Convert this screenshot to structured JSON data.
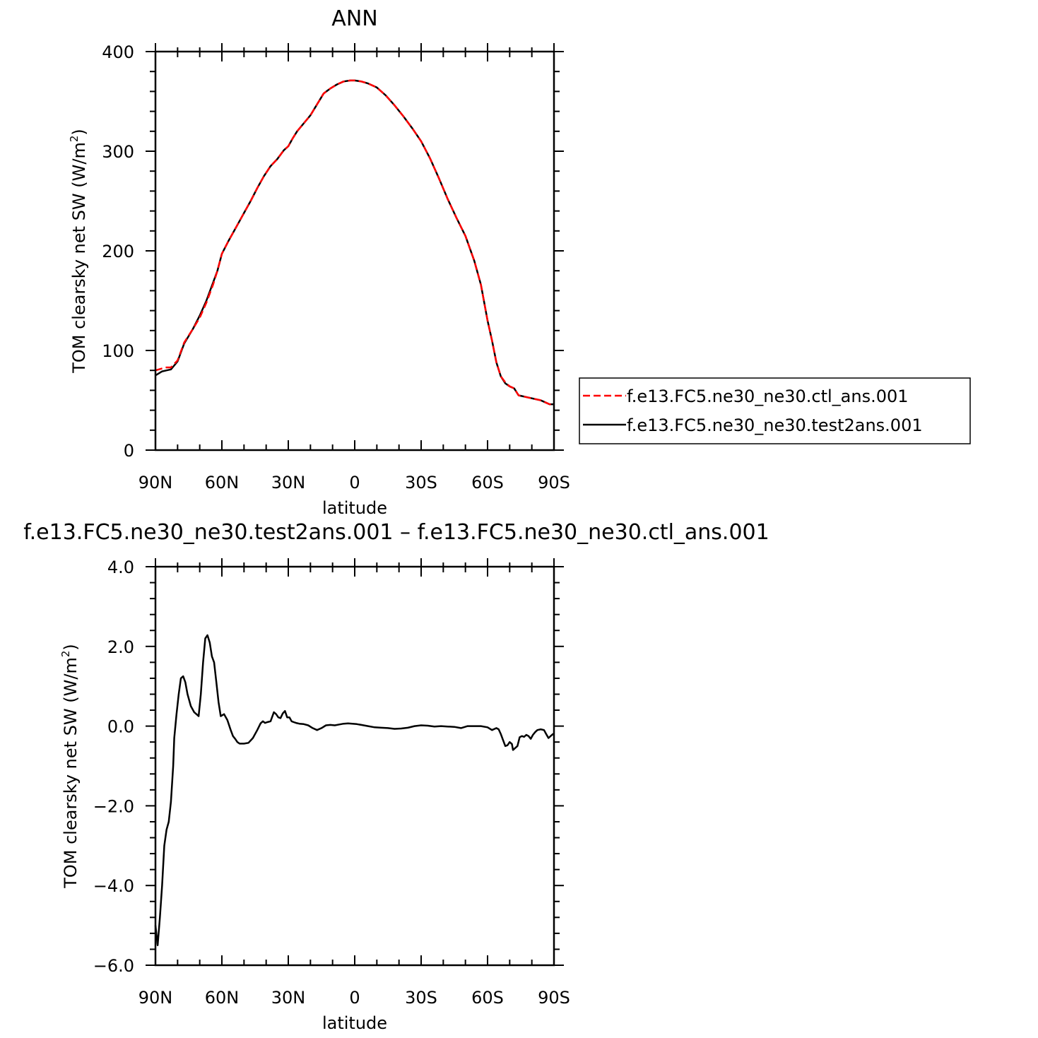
{
  "top": {
    "title": "ANN",
    "ylabel": "TOM clearsky net SW (W/m",
    "ylabel_sup": "2",
    "ylabel_close": ")",
    "xlabel": "latitude",
    "xticks": [
      "90N",
      "60N",
      "30N",
      "0",
      "30S",
      "60S",
      "90S"
    ],
    "yticks": [
      "0",
      "100",
      "200",
      "300",
      "400"
    ]
  },
  "bottom": {
    "title": "f.e13.FC5.ne30_ne30.test2ans.001  –  f.e13.FC5.ne30_ne30.ctl_ans.001",
    "ylabel": "TOM clearsky net SW (W/m",
    "ylabel_sup": "2",
    "ylabel_close": ")",
    "xlabel": "latitude",
    "xticks": [
      "90N",
      "60N",
      "30N",
      "0",
      "30S",
      "60S",
      "90S"
    ],
    "yticks": [
      "−6.0",
      "−4.0",
      "−2.0",
      "0.0",
      "2.0",
      "4.0"
    ]
  },
  "legend": {
    "items": [
      {
        "label": "f.e13.FC5.ne30_ne30.ctl_ans.001",
        "color": "#ff0000",
        "dash": true
      },
      {
        "label": "f.e13.FC5.ne30_ne30.test2ans.001",
        "color": "#000000",
        "dash": false
      }
    ]
  },
  "chart_data": [
    {
      "type": "line",
      "title": "ANN",
      "xlabel": "latitude",
      "ylabel": "TOM clearsky net SW (W/m2)",
      "xlim": [
        90,
        -90
      ],
      "ylim": [
        0,
        400
      ],
      "x_tick_values": [
        90,
        60,
        30,
        0,
        -30,
        -60,
        -90
      ],
      "y_tick_values": [
        0,
        100,
        200,
        300,
        400
      ],
      "legend": "right",
      "series": [
        {
          "name": "f.e13.FC5.ne30_ne30.ctl_ans.001",
          "color": "#ff0000",
          "style": "dashed",
          "x": [
            90,
            87,
            85,
            83,
            80,
            77,
            73,
            70,
            67,
            64,
            62,
            60,
            57,
            55,
            52,
            50,
            47,
            44,
            41,
            38,
            35,
            32,
            30,
            28,
            26,
            23,
            20,
            17,
            14,
            11,
            8,
            5,
            2,
            0,
            -3,
            -6,
            -10,
            -14,
            -18,
            -22,
            -26,
            -30,
            -34,
            -38,
            -42,
            -46,
            -50,
            -54,
            -57,
            -60,
            -62,
            -64,
            -66,
            -68,
            -70,
            -72,
            -74,
            -76,
            -78,
            -80,
            -82,
            -84,
            -86,
            -88,
            -90
          ],
          "y": [
            80,
            82,
            83,
            83,
            90,
            108,
            122,
            133,
            148,
            166,
            180,
            197,
            210,
            218,
            230,
            238,
            250,
            263,
            275,
            285,
            292,
            301,
            305,
            313,
            320,
            328,
            336,
            347,
            358,
            363,
            367,
            370,
            371,
            371,
            370,
            368,
            364,
            356,
            346,
            335,
            323,
            310,
            293,
            273,
            252,
            233,
            215,
            190,
            166,
            130,
            110,
            88,
            74,
            68,
            64,
            62,
            55,
            54,
            53,
            52,
            51,
            50,
            48,
            46,
            46
          ]
        },
        {
          "name": "f.e13.FC5.ne30_ne30.test2ans.001",
          "color": "#000000",
          "style": "solid",
          "x": [
            90,
            87,
            85,
            83,
            80,
            77,
            73,
            70,
            67,
            64,
            62,
            60,
            57,
            55,
            52,
            50,
            47,
            44,
            41,
            38,
            35,
            32,
            30,
            28,
            26,
            23,
            20,
            17,
            14,
            11,
            8,
            5,
            2,
            0,
            -3,
            -6,
            -10,
            -14,
            -18,
            -22,
            -26,
            -30,
            -34,
            -38,
            -42,
            -46,
            -50,
            -54,
            -57,
            -60,
            -62,
            -64,
            -66,
            -68,
            -70,
            -72,
            -74,
            -76,
            -78,
            -80,
            -82,
            -84,
            -86,
            -88,
            -90
          ],
          "y": [
            75,
            79,
            80,
            81,
            89,
            107,
            122,
            135,
            150,
            168,
            180,
            197,
            210,
            218,
            230,
            238,
            250,
            263,
            275,
            285,
            292,
            301,
            305,
            313,
            320,
            328,
            336,
            347,
            358,
            363,
            367,
            370,
            371,
            371,
            370,
            368,
            364,
            356,
            346,
            335,
            323,
            310,
            293,
            273,
            252,
            233,
            215,
            190,
            166,
            130,
            110,
            88,
            74,
            67,
            64,
            62,
            55,
            54,
            53,
            52,
            51,
            50,
            48,
            46,
            46
          ]
        }
      ]
    },
    {
      "type": "line",
      "title": "f.e13.FC5.ne30_ne30.test2ans.001 – f.e13.FC5.ne30_ne30.ctl_ans.001",
      "xlabel": "latitude",
      "ylabel": "TOM clearsky net SW (W/m2)",
      "xlim": [
        90,
        -90
      ],
      "ylim": [
        -6,
        4
      ],
      "x_tick_values": [
        90,
        60,
        30,
        0,
        -30,
        -60,
        -90
      ],
      "y_tick_values": [
        -6,
        -4,
        -2,
        0,
        2,
        4
      ],
      "series": [
        {
          "color": "#000000",
          "style": "solid",
          "x": [
            90,
            89,
            88,
            87,
            86,
            85,
            84,
            83,
            82,
            81.5,
            80.5,
            79.5,
            78.5,
            77.5,
            76.5,
            75.5,
            74,
            72.5,
            71.5,
            70.5,
            69.5,
            68.5,
            67.5,
            66.5,
            65.5,
            64.5,
            63.5,
            62.5,
            61.5,
            60.5,
            59,
            57.5,
            56,
            55,
            54,
            53,
            52,
            50,
            48,
            46,
            44,
            42.5,
            41.5,
            40.5,
            39.5,
            38,
            36.5,
            35.5,
            34.5,
            33.5,
            32.5,
            31.5,
            30.5,
            29.5,
            28.5,
            27.5,
            26.5,
            25,
            23,
            21,
            19,
            17,
            15,
            13,
            11,
            9,
            7,
            5,
            3,
            1,
            -1,
            -3,
            -6,
            -9,
            -12,
            -15,
            -18,
            -21,
            -24,
            -27,
            -30,
            -33,
            -36,
            -39,
            -42,
            -45,
            -48,
            -51,
            -54,
            -57,
            -60,
            -62,
            -64,
            -65,
            -66,
            -67,
            -68,
            -69,
            -70,
            -71,
            -71.5,
            -72.5,
            -73.5,
            -74.5,
            -75.5,
            -76.5,
            -77.5,
            -78.5,
            -79.5,
            -80.5,
            -81.5,
            -82.5,
            -84,
            -85.5,
            -86.5,
            -87.5,
            -88.5,
            -89.5,
            -90
          ],
          "y": [
            -5.0,
            -5.5,
            -4.8,
            -4.0,
            -3.0,
            -2.6,
            -2.4,
            -1.9,
            -1.0,
            -0.3,
            0.3,
            0.8,
            1.2,
            1.25,
            1.1,
            0.8,
            0.5,
            0.35,
            0.3,
            0.25,
            0.8,
            1.6,
            2.2,
            2.28,
            2.1,
            1.75,
            1.6,
            1.1,
            0.6,
            0.25,
            0.3,
            0.15,
            -0.1,
            -0.25,
            -0.32,
            -0.4,
            -0.44,
            -0.44,
            -0.42,
            -0.3,
            -0.1,
            0.07,
            0.12,
            0.08,
            0.1,
            0.12,
            0.35,
            0.3,
            0.22,
            0.2,
            0.32,
            0.38,
            0.22,
            0.22,
            0.12,
            0.1,
            0.08,
            0.06,
            0.05,
            0.02,
            -0.05,
            -0.1,
            -0.05,
            0.02,
            0.03,
            0.02,
            0.04,
            0.06,
            0.07,
            0.06,
            0.05,
            0.03,
            0.0,
            -0.03,
            -0.04,
            -0.05,
            -0.07,
            -0.06,
            -0.04,
            0.0,
            0.02,
            0.01,
            -0.01,
            0.0,
            -0.01,
            -0.02,
            -0.05,
            0.0,
            0.0,
            0.0,
            -0.03,
            -0.1,
            -0.05,
            -0.08,
            -0.2,
            -0.35,
            -0.5,
            -0.48,
            -0.4,
            -0.45,
            -0.6,
            -0.55,
            -0.5,
            -0.28,
            -0.25,
            -0.27,
            -0.22,
            -0.25,
            -0.32,
            -0.22,
            -0.15,
            -0.1,
            -0.08,
            -0.1,
            -0.2,
            -0.3,
            -0.25,
            -0.2,
            -0.22
          ]
        }
      ]
    }
  ]
}
